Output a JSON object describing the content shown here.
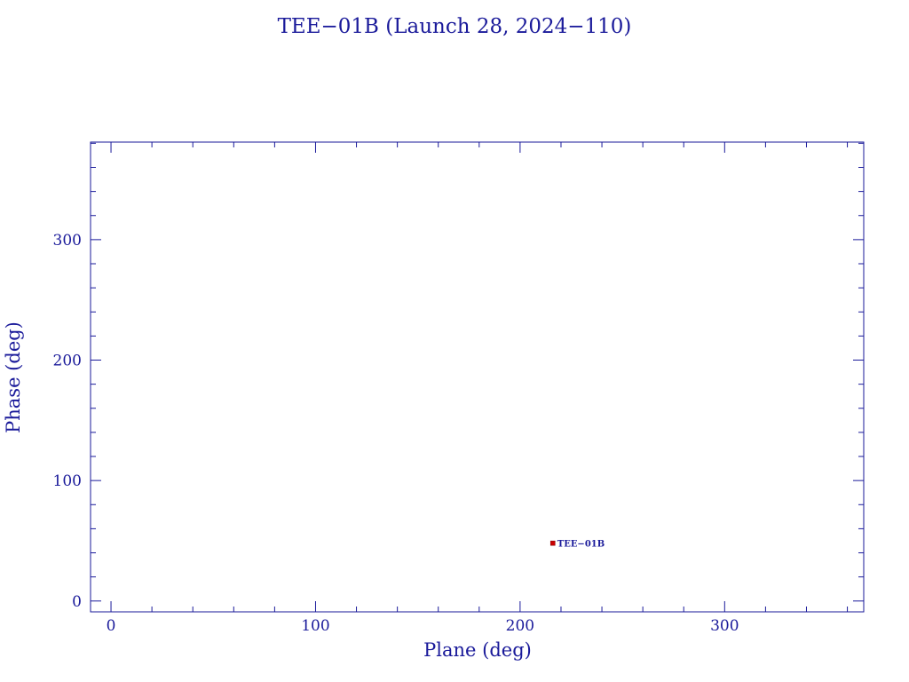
{
  "chart_data": {
    "type": "scatter",
    "title": "TEE−01B (Launch 28, 2024−110)",
    "xlabel": "Plane (deg)",
    "ylabel": "Phase (deg)",
    "xlim": [
      -10,
      368
    ],
    "ylim": [
      -9,
      381
    ],
    "xticks": [
      0,
      100,
      200,
      300
    ],
    "yticks": [
      0,
      100,
      200,
      300
    ],
    "xtick_labels": [
      "0",
      "100",
      "200",
      "300"
    ],
    "ytick_labels": [
      "0",
      "100",
      "200",
      "300"
    ],
    "x_minor_step": 20,
    "y_minor_step": 20,
    "grid": false,
    "legend": "none",
    "points": [
      {
        "label": "TEE−01B",
        "x": 216,
        "y": 48
      }
    ],
    "colors": {
      "axis": "#1a1a9a",
      "text": "#1a1a9a",
      "marker": "#cc0000",
      "point_label": "#1a1a9a"
    }
  }
}
